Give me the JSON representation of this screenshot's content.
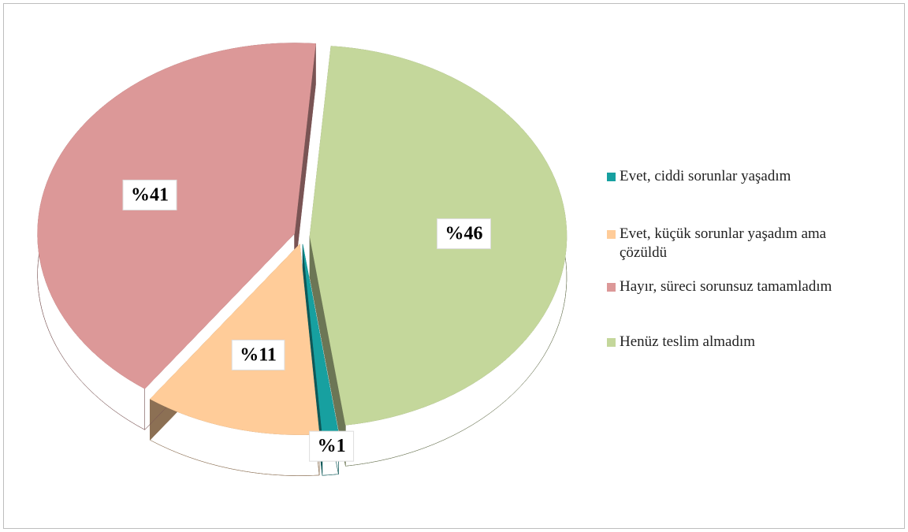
{
  "chart_data": {
    "type": "pie",
    "categories": [
      "Evet, ciddi sorunlar yaşadım",
      "Evet, küçük sorunlar yaşadım ama çözüldü",
      "Hayır, süreci sorunsuz tamamladım",
      "Henüz teslim almadım"
    ],
    "values": [
      1,
      11,
      41,
      46
    ],
    "value_labels": [
      "%1",
      "%11",
      "%41",
      "%46"
    ],
    "colors": [
      "#17a0a0",
      "#ffcc99",
      "#dc9898",
      "#c4d79b"
    ],
    "legend": "right"
  }
}
